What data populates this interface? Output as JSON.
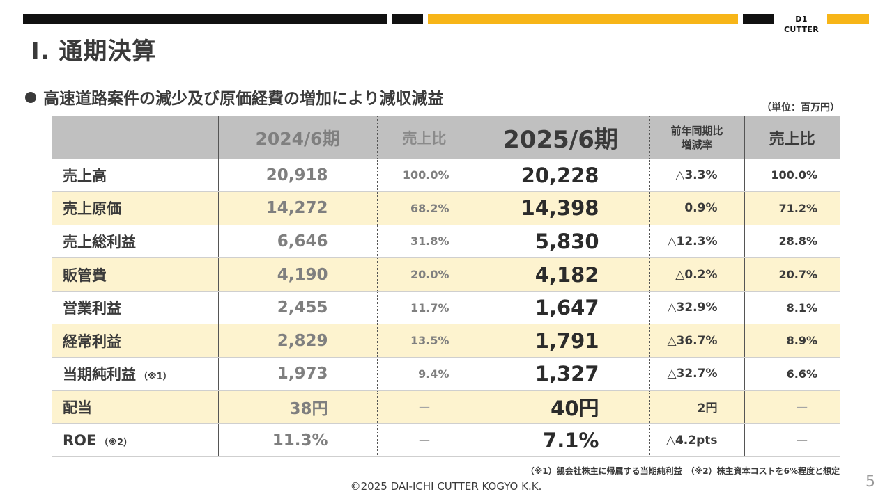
{
  "brand": {
    "logo_text": "D1 CUTTER",
    "accent": "#f7b518",
    "dark": "#111111",
    "highlight_row": "#fdf3cf",
    "header_bg": "#c0c0c0"
  },
  "title": "Ⅰ. 通期決算",
  "subtitle": "高速道路案件の減少及び原価経費の増加により減収減益",
  "unit_note": "（単位：百万円）",
  "table": {
    "headers": {
      "label": "",
      "prev": "2024/6期",
      "prev_ratio": "売上比",
      "cur": "2025/6期",
      "yoy_line1": "前年同期比",
      "yoy_line2": "増減率",
      "ratio": "売上比"
    },
    "rows": [
      {
        "label": "売上高",
        "note": "",
        "prev": "20,918",
        "prev_ratio": "100.0%",
        "cur": "20,228",
        "yoy": "△3.3%",
        "ratio": "100.0%"
      },
      {
        "label": "売上原価",
        "note": "",
        "prev": "14,272",
        "prev_ratio": "68.2%",
        "cur": "14,398",
        "yoy": "0.9%",
        "ratio": "71.2%"
      },
      {
        "label": "売上総利益",
        "note": "",
        "prev": "6,646",
        "prev_ratio": "31.8%",
        "cur": "5,830",
        "yoy": "△12.3%",
        "ratio": "28.8%"
      },
      {
        "label": "販管費",
        "note": "",
        "prev": "4,190",
        "prev_ratio": "20.0%",
        "cur": "4,182",
        "yoy": "△0.2%",
        "ratio": "20.7%"
      },
      {
        "label": "営業利益",
        "note": "",
        "prev": "2,455",
        "prev_ratio": "11.7%",
        "cur": "1,647",
        "yoy": "△32.9%",
        "ratio": "8.1%"
      },
      {
        "label": "経常利益",
        "note": "",
        "prev": "2,829",
        "prev_ratio": "13.5%",
        "cur": "1,791",
        "yoy": "△36.7%",
        "ratio": "8.9%"
      },
      {
        "label": "当期純利益",
        "note": "（※1）",
        "prev": "1,973",
        "prev_ratio": "9.4%",
        "cur": "1,327",
        "yoy": "△32.7%",
        "ratio": "6.6%"
      },
      {
        "label": "配当",
        "note": "",
        "prev": "38円",
        "prev_ratio": "—",
        "cur": "40円",
        "yoy": "2円",
        "ratio": "—"
      },
      {
        "label": "ROE",
        "note": "（※2）",
        "prev": "11.3%",
        "prev_ratio": "—",
        "cur": "7.1%",
        "yoy": "△4.2pts",
        "ratio": "—"
      }
    ]
  },
  "footnote": "（※1）親会社株主に帰属する当期純利益　（※2）株主資本コストを6%程度と想定",
  "copyright": "©2025 DAI-ICHI CUTTER KOGYO K.K.",
  "page_number": "5"
}
